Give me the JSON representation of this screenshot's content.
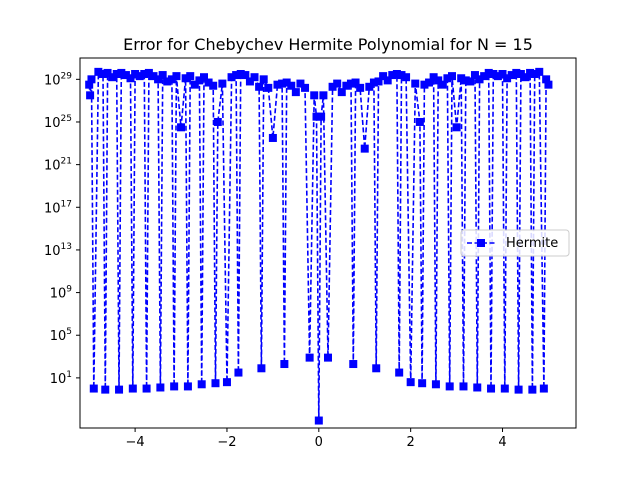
{
  "chart_data": {
    "type": "line",
    "title": "Error for Chebychev Hermite Polynomial for N = 15",
    "xlabel": "",
    "ylabel": "",
    "xlim": [
      -5.2,
      5.6
    ],
    "ylim_log10": [
      -3.7,
      31.0
    ],
    "yscale": "log",
    "x_ticks": [
      -4,
      -2,
      0,
      2,
      4
    ],
    "x_tick_labels": [
      "−4",
      "−2",
      "0",
      "2",
      "4"
    ],
    "y_ticks_log10": [
      1,
      5,
      9,
      13,
      17,
      21,
      25,
      29
    ],
    "y_tick_bases": [
      "10",
      "10",
      "10",
      "10",
      "10",
      "10",
      "10",
      "10"
    ],
    "y_tick_exponents": [
      "1",
      "5",
      "9",
      "13",
      "17",
      "21",
      "25",
      "29"
    ],
    "grid": false,
    "legend_position": "center-right",
    "series": [
      {
        "name": "Hermite",
        "color": "#0000ff",
        "linestyle": "dashed",
        "marker": "square",
        "x": [
          -5.0,
          -4.98,
          -4.95,
          -4.9,
          -4.8,
          -4.7,
          -4.65,
          -4.6,
          -4.5,
          -4.4,
          -4.35,
          -4.3,
          -4.2,
          -4.1,
          -4.05,
          -4.0,
          -3.9,
          -3.8,
          -3.75,
          -3.7,
          -3.6,
          -3.5,
          -3.45,
          -3.4,
          -3.3,
          -3.2,
          -3.15,
          -3.1,
          -3.0,
          -2.9,
          -2.85,
          -2.8,
          -2.7,
          -2.6,
          -2.55,
          -2.5,
          -2.4,
          -2.3,
          -2.25,
          -2.2,
          -2.1,
          -2.0,
          -1.9,
          -1.8,
          -1.75,
          -1.7,
          -1.6,
          -1.5,
          -1.4,
          -1.3,
          -1.25,
          -1.2,
          -1.1,
          -1.0,
          -0.9,
          -0.8,
          -0.75,
          -0.7,
          -0.6,
          -0.5,
          -0.4,
          -0.3,
          -0.2,
          -0.1,
          -0.05,
          0.0,
          0.05,
          0.1,
          0.2,
          0.3,
          0.4,
          0.5,
          0.6,
          0.7,
          0.75,
          0.8,
          0.9,
          1.0,
          1.1,
          1.2,
          1.25,
          1.3,
          1.4,
          1.5,
          1.6,
          1.7,
          1.75,
          1.8,
          1.9,
          2.0,
          2.1,
          2.2,
          2.25,
          2.3,
          2.4,
          2.5,
          2.55,
          2.6,
          2.7,
          2.8,
          2.85,
          2.9,
          3.0,
          3.1,
          3.15,
          3.2,
          3.3,
          3.4,
          3.45,
          3.5,
          3.6,
          3.7,
          3.75,
          3.8,
          3.9,
          4.0,
          4.05,
          4.1,
          4.2,
          4.3,
          4.35,
          4.4,
          4.5,
          4.6,
          4.65,
          4.7,
          4.8,
          4.9,
          4.95,
          5.0
        ],
        "log10_y": [
          28.5,
          27.5,
          29.0,
          0.0,
          29.7,
          29.5,
          -0.1,
          29.6,
          29.2,
          29.5,
          -0.1,
          29.6,
          29.4,
          29.1,
          0.0,
          29.5,
          29.3,
          29.5,
          0.0,
          29.6,
          29.3,
          29.0,
          0.1,
          29.4,
          28.8,
          29.0,
          0.2,
          29.3,
          24.5,
          29.1,
          0.2,
          29.3,
          28.5,
          28.9,
          0.4,
          29.2,
          28.7,
          28.4,
          0.5,
          25.0,
          28.6,
          0.6,
          29.2,
          29.4,
          1.5,
          29.5,
          29.4,
          28.8,
          29.2,
          28.3,
          1.9,
          29.0,
          28.2,
          23.5,
          28.5,
          28.6,
          2.3,
          28.7,
          28.4,
          27.8,
          28.6,
          28.2,
          2.9,
          27.5,
          25.5,
          -3.0,
          25.5,
          27.5,
          2.9,
          28.3,
          28.6,
          27.8,
          28.4,
          28.6,
          2.3,
          28.7,
          28.2,
          22.5,
          28.3,
          28.7,
          1.9,
          28.8,
          29.3,
          28.9,
          29.4,
          29.5,
          1.5,
          29.4,
          29.2,
          0.6,
          28.6,
          25.0,
          0.5,
          28.5,
          28.7,
          29.2,
          0.4,
          28.9,
          28.5,
          29.1,
          0.2,
          29.3,
          24.5,
          29.1,
          0.2,
          28.9,
          28.8,
          29.4,
          0.1,
          29.0,
          29.3,
          29.6,
          0.0,
          29.5,
          29.3,
          29.5,
          0.0,
          29.1,
          29.4,
          29.6,
          -0.1,
          29.5,
          29.2,
          29.6,
          -0.1,
          29.5,
          29.7,
          0.0,
          29.0,
          28.5
        ]
      }
    ]
  }
}
